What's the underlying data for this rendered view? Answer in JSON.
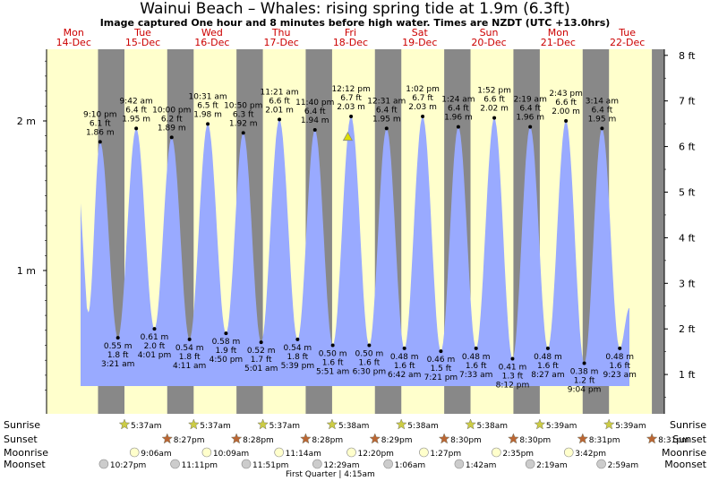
{
  "title": "Wainui Beach – Whales: rising  spring tide at 1.9m (6.3ft)",
  "subtitle": "Image captured One hour and 8 minutes before high water. Times are NZDT (UTC +13.0hrs)",
  "colors": {
    "day": "#ffffcc",
    "night": "#888888",
    "water": "#99aaff",
    "text_red": "#cc0000",
    "marker": "#dddd00"
  },
  "chart_data": {
    "type": "area",
    "days": [
      {
        "name": "Mon",
        "date": "14-Dec"
      },
      {
        "name": "Tue",
        "date": "15-Dec"
      },
      {
        "name": "Wed",
        "date": "16-Dec"
      },
      {
        "name": "Thu",
        "date": "17-Dec"
      },
      {
        "name": "Fri",
        "date": "18-Dec"
      },
      {
        "name": "Sat",
        "date": "19-Dec"
      },
      {
        "name": "Sun",
        "date": "20-Dec"
      },
      {
        "name": "Mon",
        "date": "21-Dec"
      },
      {
        "name": "Tue",
        "date": "22-Dec"
      }
    ],
    "y_left_ticks": [
      {
        "label": "1 m",
        "value": 1
      },
      {
        "label": "2 m",
        "value": 2
      }
    ],
    "y_right_ticks": [
      "1 ft",
      "2 ft",
      "3 ft",
      "4 ft",
      "5 ft",
      "6 ft",
      "7 ft",
      "8 ft"
    ],
    "ylim_m": [
      0.19,
      2.44
    ],
    "tides": [
      {
        "type": "high",
        "time": "9:10 pm",
        "ft": "6.1 ft",
        "m": "1.86 m",
        "day": 0,
        "hour": 21.17,
        "height": 1.86
      },
      {
        "type": "low",
        "time": "3:21 am",
        "ft": "1.8 ft",
        "m": "0.55 m",
        "day": 1,
        "hour": 3.35,
        "height": 0.55
      },
      {
        "type": "high",
        "time": "9:42 am",
        "ft": "6.4 ft",
        "m": "1.95 m",
        "day": 1,
        "hour": 9.7,
        "height": 1.95
      },
      {
        "type": "low",
        "time": "4:01 pm",
        "ft": "2.0 ft",
        "m": "0.61 m",
        "day": 1,
        "hour": 16.02,
        "height": 0.61
      },
      {
        "type": "high",
        "time": "10:00 pm",
        "ft": "6.2 ft",
        "m": "1.89 m",
        "day": 1,
        "hour": 22.0,
        "height": 1.89
      },
      {
        "type": "low",
        "time": "4:11 am",
        "ft": "1.8 ft",
        "m": "0.54 m",
        "day": 2,
        "hour": 4.18,
        "height": 0.54
      },
      {
        "type": "high",
        "time": "10:31 am",
        "ft": "6.5 ft",
        "m": "1.98 m",
        "day": 2,
        "hour": 10.52,
        "height": 1.98
      },
      {
        "type": "low",
        "time": "4:50 pm",
        "ft": "1.9 ft",
        "m": "0.58 m",
        "day": 2,
        "hour": 16.83,
        "height": 0.58
      },
      {
        "type": "high",
        "time": "10:50 pm",
        "ft": "6.3 ft",
        "m": "1.92 m",
        "day": 2,
        "hour": 22.83,
        "height": 1.92
      },
      {
        "type": "low",
        "time": "5:01 am",
        "ft": "1.7 ft",
        "m": "0.52 m",
        "day": 3,
        "hour": 5.02,
        "height": 0.52
      },
      {
        "type": "high",
        "time": "11:21 am",
        "ft": "6.6 ft",
        "m": "2.01 m",
        "day": 3,
        "hour": 11.35,
        "height": 2.01
      },
      {
        "type": "low",
        "time": "5:39 pm",
        "ft": "1.8 ft",
        "m": "0.54 m",
        "day": 3,
        "hour": 17.65,
        "height": 0.54
      },
      {
        "type": "high",
        "time": "11:40 pm",
        "ft": "6.4 ft",
        "m": "1.94 m",
        "day": 3,
        "hour": 23.67,
        "height": 1.94
      },
      {
        "type": "low",
        "time": "5:51 am",
        "ft": "1.6 ft",
        "m": "0.50 m",
        "day": 4,
        "hour": 5.85,
        "height": 0.5
      },
      {
        "type": "high",
        "time": "12:12 pm",
        "ft": "6.7 ft",
        "m": "2.03 m",
        "day": 4,
        "hour": 12.2,
        "height": 2.03
      },
      {
        "type": "low",
        "time": "6:30 pm",
        "ft": "1.6 ft",
        "m": "0.50 m",
        "day": 4,
        "hour": 18.5,
        "height": 0.5
      },
      {
        "type": "high",
        "time": "12:31 am",
        "ft": "6.4 ft",
        "m": "1.95 m",
        "day": 5,
        "hour": 0.52,
        "height": 1.95
      },
      {
        "type": "low",
        "time": "6:42 am",
        "ft": "1.6 ft",
        "m": "0.48 m",
        "day": 5,
        "hour": 6.7,
        "height": 0.48
      },
      {
        "type": "high",
        "time": "1:02 pm",
        "ft": "6.7 ft",
        "m": "2.03 m",
        "day": 5,
        "hour": 13.03,
        "height": 2.03
      },
      {
        "type": "low",
        "time": "7:21 pm",
        "ft": "1.5 ft",
        "m": "0.46 m",
        "day": 5,
        "hour": 19.35,
        "height": 0.46
      },
      {
        "type": "high",
        "time": "1:24 am",
        "ft": "6.4 ft",
        "m": "1.96 m",
        "day": 6,
        "hour": 1.4,
        "height": 1.96
      },
      {
        "type": "low",
        "time": "7:33 am",
        "ft": "1.6 ft",
        "m": "0.48 m",
        "day": 6,
        "hour": 7.55,
        "height": 0.48
      },
      {
        "type": "high",
        "time": "1:52 pm",
        "ft": "6.6 ft",
        "m": "2.02 m",
        "day": 6,
        "hour": 13.87,
        "height": 2.02
      },
      {
        "type": "low",
        "time": "8:12 pm",
        "ft": "1.3 ft",
        "m": "0.41 m",
        "day": 6,
        "hour": 20.2,
        "height": 0.41
      },
      {
        "type": "high",
        "time": "2:19 am",
        "ft": "6.4 ft",
        "m": "1.96 m",
        "day": 7,
        "hour": 2.32,
        "height": 1.96
      },
      {
        "type": "low",
        "time": "8:27 am",
        "ft": "1.6 ft",
        "m": "0.48 m",
        "day": 7,
        "hour": 8.45,
        "height": 0.48
      },
      {
        "type": "high",
        "time": "2:43 pm",
        "ft": "6.6 ft",
        "m": "2.00 m",
        "day": 7,
        "hour": 14.72,
        "height": 2.0
      },
      {
        "type": "low",
        "time": "9:04 pm",
        "ft": "1.2 ft",
        "m": "0.38 m",
        "day": 7,
        "hour": 21.07,
        "height": 0.38
      },
      {
        "type": "high",
        "time": "3:14 am",
        "ft": "6.4 ft",
        "m": "1.95 m",
        "day": 8,
        "hour": 3.23,
        "height": 1.95
      },
      {
        "type": "low",
        "time": "9:23 am",
        "ft": "1.6 ft",
        "m": "0.48 m",
        "day": 8,
        "hour": 9.38,
        "height": 0.48
      }
    ],
    "now": {
      "day": 4,
      "hour": 11.07,
      "height": 1.9
    },
    "sunrise": [
      {
        "day": 1,
        "time": "5:37am"
      },
      {
        "day": 2,
        "time": "5:37am"
      },
      {
        "day": 3,
        "time": "5:37am"
      },
      {
        "day": 4,
        "time": "5:38am"
      },
      {
        "day": 5,
        "time": "5:38am"
      },
      {
        "day": 6,
        "time": "5:38am"
      },
      {
        "day": 7,
        "time": "5:39am"
      },
      {
        "day": 8,
        "time": "5:39am"
      }
    ],
    "sunset": [
      {
        "day": 1,
        "time": "8:27pm"
      },
      {
        "day": 2,
        "time": "8:28pm"
      },
      {
        "day": 3,
        "time": "8:28pm"
      },
      {
        "day": 4,
        "time": "8:29pm"
      },
      {
        "day": 5,
        "time": "8:30pm"
      },
      {
        "day": 6,
        "time": "8:30pm"
      },
      {
        "day": 7,
        "time": "8:31pm"
      },
      {
        "day": 8,
        "time": "8:31pm"
      }
    ],
    "moonrise": [
      {
        "day": 1,
        "time": "9:06am"
      },
      {
        "day": 2,
        "time": "10:09am"
      },
      {
        "day": 3,
        "time": "11:14am"
      },
      {
        "day": 4,
        "time": "12:20pm"
      },
      {
        "day": 5,
        "time": "1:27pm"
      },
      {
        "day": 6,
        "time": "2:35pm"
      },
      {
        "day": 7,
        "time": "3:42pm"
      }
    ],
    "moonset": [
      {
        "day": 0,
        "time": "10:27pm"
      },
      {
        "day": 1,
        "time": "11:11pm"
      },
      {
        "day": 2,
        "time": "11:51pm"
      },
      {
        "day": 4,
        "time": "12:29am"
      },
      {
        "day": 5,
        "time": "1:06am"
      },
      {
        "day": 6,
        "time": "1:42am"
      },
      {
        "day": 7,
        "time": "2:19am"
      },
      {
        "day": 8,
        "time": "2:59am"
      }
    ],
    "row_labels": {
      "sunrise": "Sunrise",
      "sunset": "Sunset",
      "moonrise": "Moonrise",
      "moonset": "Moonset"
    },
    "moon_phase": "First Quarter | 4:15am"
  }
}
